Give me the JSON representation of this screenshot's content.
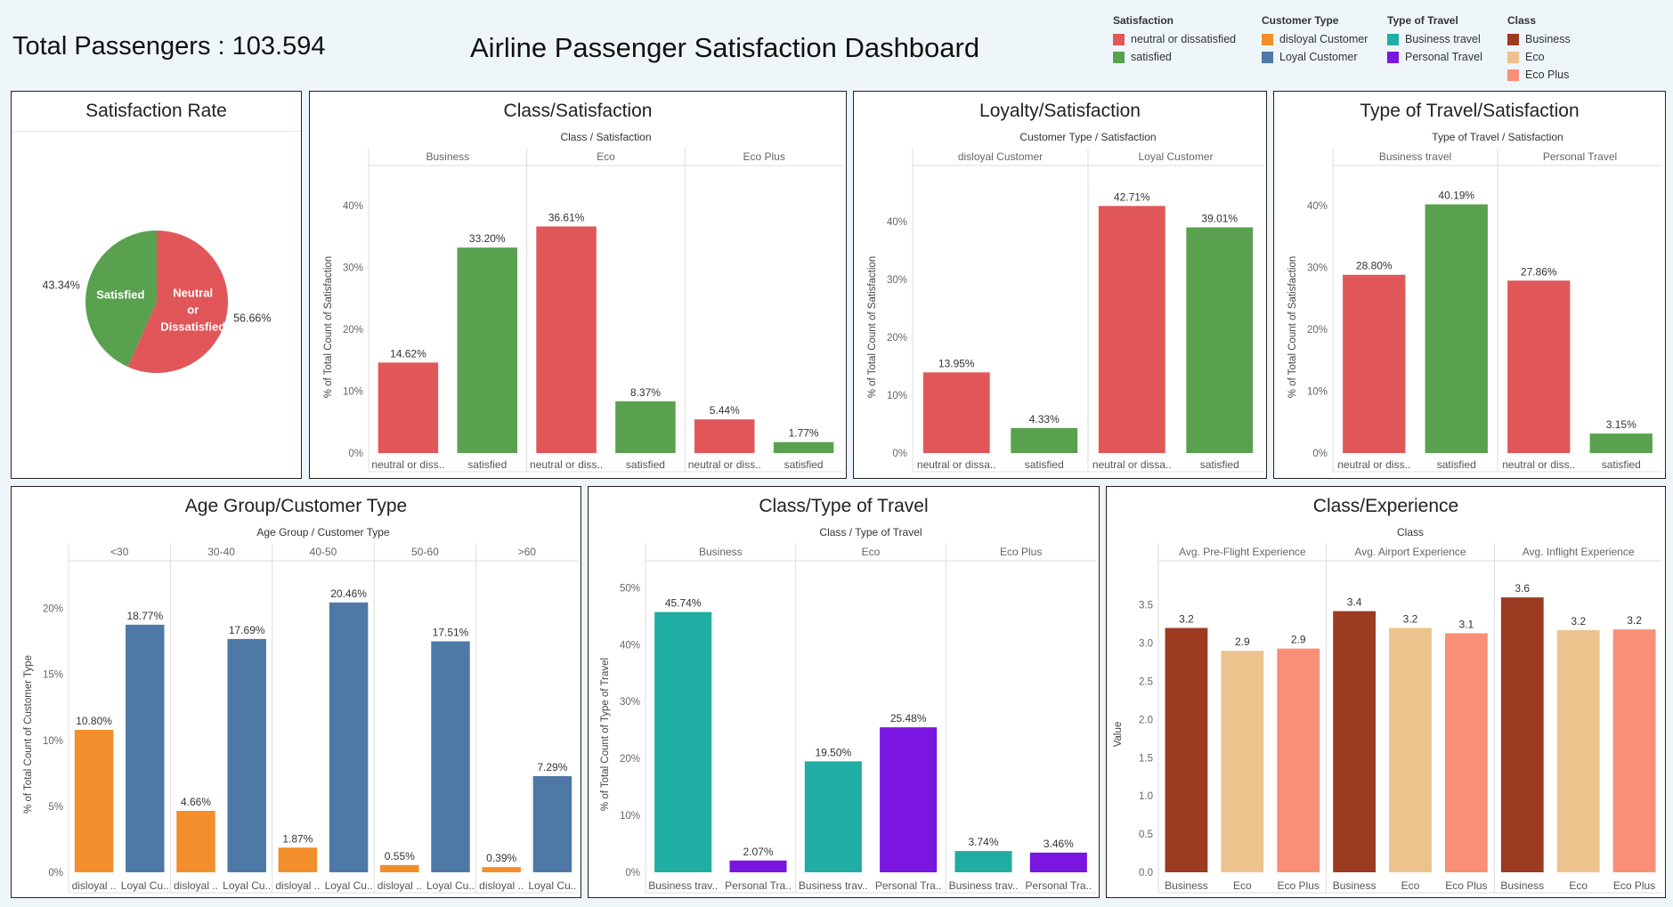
{
  "header": {
    "total_passengers": "Total Passengers : 103.594",
    "title": "Airline Passenger Satisfaction Dashboard"
  },
  "legend": [
    {
      "title": "Satisfaction",
      "items": [
        {
          "label": "neutral or dissatisfied",
          "color": "#e15759"
        },
        {
          "label": "satisfied",
          "color": "#59a14f"
        }
      ]
    },
    {
      "title": "Customer Type",
      "items": [
        {
          "label": "disloyal Customer",
          "color": "#f28e2b"
        },
        {
          "label": "Loyal Customer",
          "color": "#4e79a7"
        }
      ]
    },
    {
      "title": "Type of Travel",
      "items": [
        {
          "label": "Business travel",
          "color": "#20ada4"
        },
        {
          "label": "Personal Travel",
          "color": "#7b16e0"
        }
      ]
    },
    {
      "title": "Class",
      "items": [
        {
          "label": "Business",
          "color": "#9c3a22"
        },
        {
          "label": "Eco",
          "color": "#ecc28d"
        },
        {
          "label": "Eco Plus",
          "color": "#f98f77"
        }
      ]
    }
  ],
  "chart_data": [
    {
      "id": "pie",
      "type": "pie",
      "title": "Satisfaction Rate",
      "slices": [
        {
          "label": "Neutral or Dissatisfied",
          "pct_label": "56.66%",
          "value": 56.66,
          "color": "#e15759"
        },
        {
          "label": "Satisfied",
          "pct_label": "43.34%",
          "value": 43.34,
          "color": "#59a14f"
        }
      ]
    },
    {
      "id": "class_sat",
      "type": "bar",
      "title": "Class/Satisfaction",
      "header": "Class  /  Satisfaction",
      "ylabel": "% of Total Count of Satisfaction",
      "ylim": [
        0,
        43
      ],
      "yticks": [
        0,
        10,
        20,
        30,
        40
      ],
      "suffix": "%",
      "groups": [
        {
          "name": "Business",
          "bars": [
            {
              "label": "neutral or diss..",
              "value": 14.62,
              "text": "14.62%",
              "color": "#e15759"
            },
            {
              "label": "satisfied",
              "value": 33.2,
              "text": "33.20%",
              "color": "#59a14f"
            }
          ]
        },
        {
          "name": "Eco",
          "bars": [
            {
              "label": "neutral or diss..",
              "value": 36.61,
              "text": "36.61%",
              "color": "#e15759"
            },
            {
              "label": "satisfied",
              "value": 8.37,
              "text": "8.37%",
              "color": "#59a14f"
            }
          ]
        },
        {
          "name": "Eco Plus",
          "bars": [
            {
              "label": "neutral or diss..",
              "value": 5.44,
              "text": "5.44%",
              "color": "#e15759"
            },
            {
              "label": "satisfied",
              "value": 1.77,
              "text": "1.77%",
              "color": "#59a14f"
            }
          ]
        }
      ]
    },
    {
      "id": "loyal_sat",
      "type": "bar",
      "title": "Loyalty/Satisfaction",
      "header": "Customer Type  /  Satisfaction",
      "ylabel": "% of Total Count of Satisfaction",
      "ylim": [
        0,
        46
      ],
      "yticks": [
        0,
        10,
        20,
        30,
        40
      ],
      "suffix": "%",
      "groups": [
        {
          "name": "disloyal Customer",
          "bars": [
            {
              "label": "neutral or dissa..",
              "value": 13.95,
              "text": "13.95%",
              "color": "#e15759"
            },
            {
              "label": "satisfied",
              "value": 4.33,
              "text": "4.33%",
              "color": "#59a14f"
            }
          ]
        },
        {
          "name": "Loyal Customer",
          "bars": [
            {
              "label": "neutral or dissa..",
              "value": 42.71,
              "text": "42.71%",
              "color": "#e15759"
            },
            {
              "label": "satisfied",
              "value": 39.01,
              "text": "39.01%",
              "color": "#59a14f"
            }
          ]
        }
      ]
    },
    {
      "id": "travel_sat",
      "type": "bar",
      "title": "Type of Travel/Satisfaction",
      "header": "Type of Travel  /  Satisfaction",
      "ylabel": "% of Total Count of Satisfaction",
      "ylim": [
        0,
        43
      ],
      "yticks": [
        0,
        10,
        20,
        30,
        40
      ],
      "suffix": "%",
      "groups": [
        {
          "name": "Business travel",
          "bars": [
            {
              "label": "neutral or diss..",
              "value": 28.8,
              "text": "28.80%",
              "color": "#e15759"
            },
            {
              "label": "satisfied",
              "value": 40.19,
              "text": "40.19%",
              "color": "#59a14f"
            }
          ]
        },
        {
          "name": "Personal Travel",
          "bars": [
            {
              "label": "neutral or diss..",
              "value": 27.86,
              "text": "27.86%",
              "color": "#e15759"
            },
            {
              "label": "satisfied",
              "value": 3.15,
              "text": "3.15%",
              "color": "#59a14f"
            }
          ]
        }
      ]
    },
    {
      "id": "age_cust",
      "type": "bar",
      "title": "Age Group/Customer Type",
      "header": "Age Group  /  Customer Type",
      "ylabel": "% of Total Count of Customer Type",
      "ylim": [
        0,
        22
      ],
      "yticks": [
        0,
        5,
        10,
        15,
        20
      ],
      "suffix": "%",
      "groups": [
        {
          "name": "<30",
          "bars": [
            {
              "label": "disloyal ..",
              "value": 10.8,
              "text": "10.80%",
              "color": "#f28e2b"
            },
            {
              "label": "Loyal Cu..",
              "value": 18.77,
              "text": "18.77%",
              "color": "#4e79a7"
            }
          ]
        },
        {
          "name": "30-40",
          "bars": [
            {
              "label": "disloyal ..",
              "value": 4.66,
              "text": "4.66%",
              "color": "#f28e2b"
            },
            {
              "label": "Loyal Cu..",
              "value": 17.69,
              "text": "17.69%",
              "color": "#4e79a7"
            }
          ]
        },
        {
          "name": "40-50",
          "bars": [
            {
              "label": "disloyal ..",
              "value": 1.87,
              "text": "1.87%",
              "color": "#f28e2b"
            },
            {
              "label": "Loyal Cu..",
              "value": 20.46,
              "text": "20.46%",
              "color": "#4e79a7"
            }
          ]
        },
        {
          "name": "50-60",
          "bars": [
            {
              "label": "disloyal ..",
              "value": 0.55,
              "text": "0.55%",
              "color": "#f28e2b"
            },
            {
              "label": "Loyal Cu..",
              "value": 17.51,
              "text": "17.51%",
              "color": "#4e79a7"
            }
          ]
        },
        {
          "name": ">60",
          "bars": [
            {
              "label": "disloyal ..",
              "value": 0.39,
              "text": "0.39%",
              "color": "#f28e2b"
            },
            {
              "label": "Loyal Cu..",
              "value": 7.29,
              "text": "7.29%",
              "color": "#4e79a7"
            }
          ]
        }
      ]
    },
    {
      "id": "class_travel",
      "type": "bar",
      "title": "Class/Type of Travel",
      "header": "Class  /  Type of Travel",
      "ylabel": "% of Total Count of Type of Travel",
      "ylim": [
        0,
        51
      ],
      "yticks": [
        0,
        10,
        20,
        30,
        40,
        50
      ],
      "suffix": "%",
      "groups": [
        {
          "name": "Business",
          "bars": [
            {
              "label": "Business trav..",
              "value": 45.74,
              "text": "45.74%",
              "color": "#20ada4"
            },
            {
              "label": "Personal Tra..",
              "value": 2.07,
              "text": "2.07%",
              "color": "#7b16e0"
            }
          ]
        },
        {
          "name": "Eco",
          "bars": [
            {
              "label": "Business trav..",
              "value": 19.5,
              "text": "19.50%",
              "color": "#20ada4"
            },
            {
              "label": "Personal Tra..",
              "value": 25.48,
              "text": "25.48%",
              "color": "#7b16e0"
            }
          ]
        },
        {
          "name": "Eco Plus",
          "bars": [
            {
              "label": "Business trav..",
              "value": 3.74,
              "text": "3.74%",
              "color": "#20ada4"
            },
            {
              "label": "Personal Tra..",
              "value": 3.46,
              "text": "3.46%",
              "color": "#7b16e0"
            }
          ]
        }
      ]
    },
    {
      "id": "class_exp",
      "type": "bar",
      "title": "Class/Experience",
      "header": "Class",
      "ylabel": "Value",
      "ylim": [
        0,
        3.8
      ],
      "yticks": [
        0.0,
        0.5,
        1.0,
        1.5,
        2.0,
        2.5,
        3.0,
        3.5
      ],
      "tick_decimals": 1,
      "suffix": "",
      "groups": [
        {
          "name": "Avg. Pre-Flight Experience",
          "bars": [
            {
              "label": "Business",
              "value": 3.2,
              "text": "3.2",
              "color": "#9c3a22"
            },
            {
              "label": "Eco",
              "value": 2.9,
              "text": "2.9",
              "color": "#ecc28d"
            },
            {
              "label": "Eco Plus",
              "value": 2.93,
              "text": "2.9",
              "color": "#f98f77"
            }
          ]
        },
        {
          "name": "Avg. Airport Experience",
          "bars": [
            {
              "label": "Business",
              "value": 3.42,
              "text": "3.4",
              "color": "#9c3a22"
            },
            {
              "label": "Eco",
              "value": 3.2,
              "text": "3.2",
              "color": "#ecc28d"
            },
            {
              "label": "Eco Plus",
              "value": 3.13,
              "text": "3.1",
              "color": "#f98f77"
            }
          ]
        },
        {
          "name": "Avg. Inflight Experience",
          "bars": [
            {
              "label": "Business",
              "value": 3.6,
              "text": "3.6",
              "color": "#9c3a22"
            },
            {
              "label": "Eco",
              "value": 3.17,
              "text": "3.2",
              "color": "#ecc28d"
            },
            {
              "label": "Eco Plus",
              "value": 3.18,
              "text": "3.2",
              "color": "#f98f77"
            }
          ]
        }
      ]
    }
  ]
}
